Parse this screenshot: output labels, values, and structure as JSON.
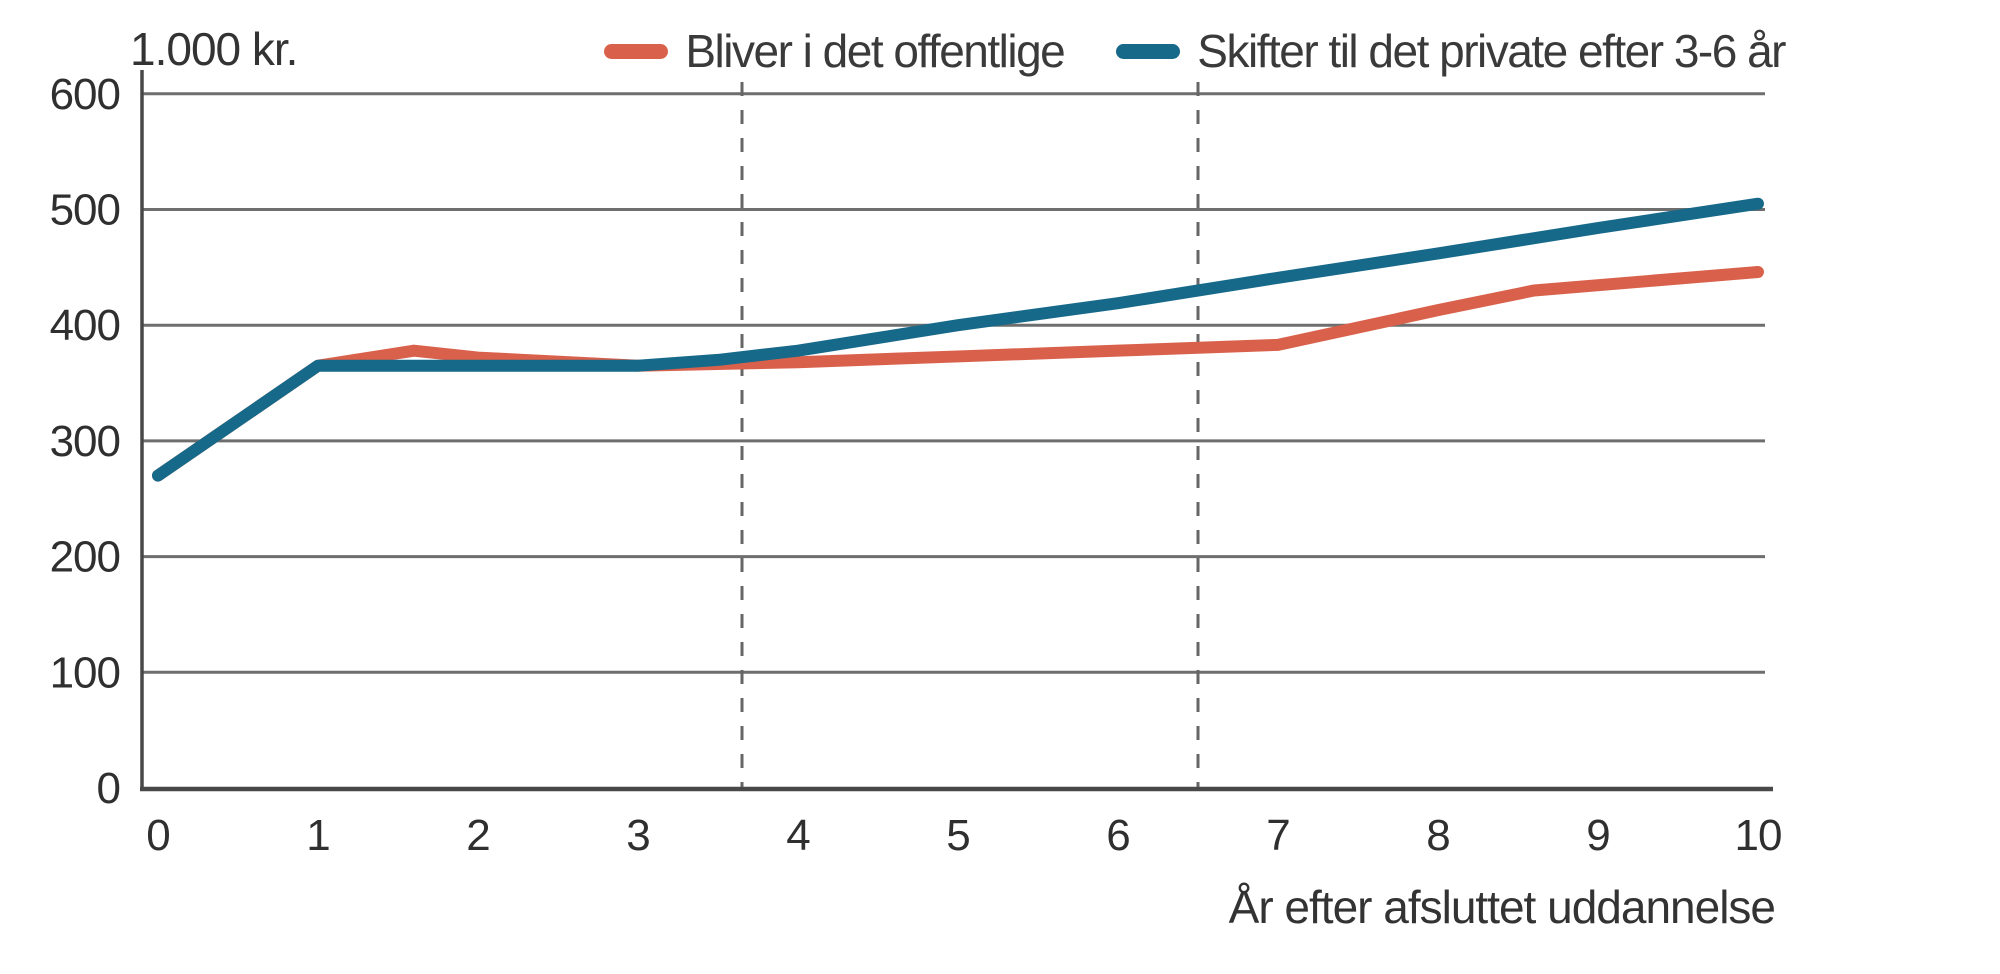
{
  "chart": {
    "unit_label": "1.000 kr.",
    "x_axis_label": "År efter afsluttet uddannelse"
  },
  "chart_data": {
    "type": "line",
    "title": "1.000 kr.",
    "xlabel": "År efter afsluttet uddannelse",
    "ylabel": "1.000 kr.",
    "xlim": [
      0,
      10
    ],
    "ylim": [
      0,
      600
    ],
    "x_ticks": [
      0,
      1,
      2,
      3,
      4,
      5,
      6,
      7,
      8,
      9,
      10
    ],
    "y_ticks": [
      0,
      100,
      200,
      300,
      400,
      500,
      600
    ],
    "grid": true,
    "legend_position": "top",
    "categories": [
      0,
      1,
      2,
      3,
      4,
      5,
      6,
      7,
      8,
      9,
      10
    ],
    "series": [
      {
        "name": "Bliver i det offentlige",
        "color": "#d9614b",
        "values": [
          270,
          365,
          372,
          365,
          368,
          373,
          378,
          383,
          413,
          435,
          446
        ],
        "breakpoints": [
          [
            0,
            270
          ],
          [
            1,
            365
          ],
          [
            1.6,
            378
          ],
          [
            2,
            372
          ],
          [
            3,
            365
          ],
          [
            4,
            368
          ],
          [
            5,
            373
          ],
          [
            6,
            378
          ],
          [
            7,
            383
          ],
          [
            8,
            413
          ],
          [
            8.6,
            430
          ],
          [
            10,
            446
          ]
        ]
      },
      {
        "name": "Skifter til det private efter 3-6 år",
        "color": "#17698a",
        "values": [
          270,
          365,
          365,
          365,
          378,
          400,
          419,
          441,
          462,
          484,
          505
        ],
        "breakpoints": [
          [
            0,
            270
          ],
          [
            1,
            365
          ],
          [
            2,
            365
          ],
          [
            3,
            365
          ],
          [
            3.5,
            370
          ],
          [
            4,
            378
          ],
          [
            4.5,
            389
          ],
          [
            5,
            400
          ],
          [
            6,
            419
          ],
          [
            7,
            441
          ],
          [
            8,
            462
          ],
          [
            9,
            484
          ],
          [
            10,
            505
          ]
        ]
      }
    ],
    "annotations": {
      "vertical_dashed_lines_x": [
        3.65,
        6.5
      ]
    }
  },
  "colors": {
    "series_public": "#d9614b",
    "series_private": "#17698a",
    "grid": "#6e6e6e",
    "axis": "#484848",
    "dashed": "#666666",
    "text": "#333333",
    "background": "#ffffff"
  }
}
